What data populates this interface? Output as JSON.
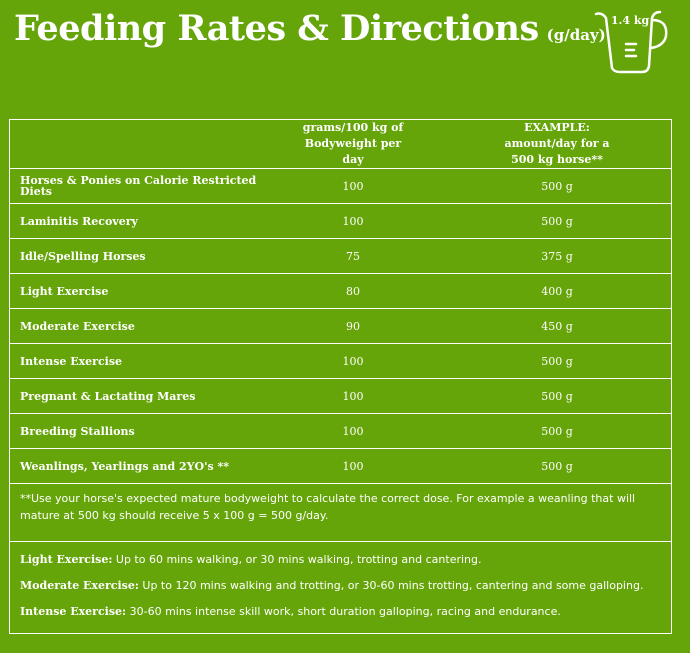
{
  "header": {
    "title": "Feeding Rates & Directions",
    "unit": "(g/day)",
    "jug_label": "1.4 kg"
  },
  "colors": {
    "background": "#66a50a",
    "text": "#ffffff"
  },
  "icons": {
    "jug": "measuring-jug-icon"
  },
  "table": {
    "col1_header": "grams/100 kg of Bodyweight per day",
    "col2_header": "EXAMPLE: amount/day for a 500 kg horse**",
    "rows": [
      {
        "label": "Horses & Ponies on Calorie Restricted Diets",
        "rate": "100",
        "example": "500 g"
      },
      {
        "label": "Laminitis Recovery",
        "rate": "100",
        "example": "500 g"
      },
      {
        "label": "Idle/Spelling Horses",
        "rate": "75",
        "example": "375 g"
      },
      {
        "label": "Light Exercise",
        "rate": "80",
        "example": "400 g"
      },
      {
        "label": "Moderate Exercise",
        "rate": "90",
        "example": "450 g"
      },
      {
        "label": "Intense Exercise",
        "rate": "100",
        "example": "500 g"
      },
      {
        "label": "Pregnant & Lactating Mares",
        "rate": "100",
        "example": "500 g"
      },
      {
        "label": "Breeding Stallions",
        "rate": "100",
        "example": "500 g"
      },
      {
        "label": "Weanlings, Yearlings and 2YO's **",
        "rate": "100",
        "example": "500 g"
      }
    ]
  },
  "note": "**Use your horse's expected mature bodyweight to calculate the correct dose. For example a weanling that will mature at 500 kg should receive 5 x 100 g = 500 g/day.",
  "definitions": [
    {
      "term": "Light Exercise:",
      "text": "Up to 60 mins walking, or 30 mins walking, trotting and cantering."
    },
    {
      "term": "Moderate Exercise:",
      "text": "Up to 120 mins walking and trotting, or 30-60 mins trotting, cantering and some galloping."
    },
    {
      "term": "Intense Exercise:",
      "text": "30-60 mins intense skill work, short duration galloping, racing and endurance."
    }
  ]
}
